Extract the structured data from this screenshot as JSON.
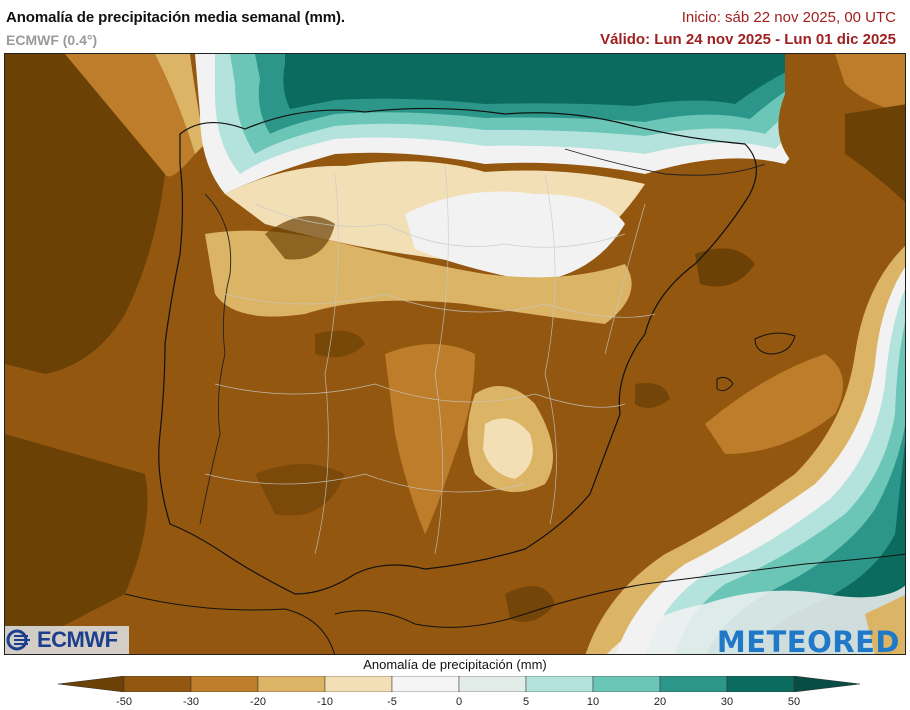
{
  "header": {
    "title": "Anomalía de precipitación media semanal (mm).",
    "model": "ECMWF (0.4°)",
    "init": "Inicio:  sáb 22 nov 2025, 00 UTC",
    "valid": "Válido: Lun 24 nov 2025 - Lun 01 dic 2025"
  },
  "logos": {
    "ecmwf": "ECMWF",
    "meteored": "METEORED"
  },
  "colorbar": {
    "title": "Anomalía de precipitación (mm)",
    "ticks": [
      "-50",
      "-30",
      "-20",
      "-10",
      "-5",
      "0",
      "5",
      "10",
      "20",
      "30",
      "50"
    ],
    "colors": [
      "#6b4106",
      "#94570f",
      "#bd7d2a",
      "#dcb466",
      "#f3dfb5",
      "#f5f5f5",
      "#e2ece9",
      "#b3e3dc",
      "#6cc6b7",
      "#2c968a",
      "#0b6b5e",
      "#074d45"
    ]
  },
  "palette": {
    "deep_brown": "#6b4106",
    "brown": "#94570f",
    "mid_brown": "#bd7d2a",
    "tan": "#dcb466",
    "light_tan": "#f3dfb5",
    "white": "#f2f2f2",
    "light_teal": "#b3e3dc",
    "teal": "#6cc6b7",
    "dark_teal": "#2c968a",
    "deep_teal": "#0b6b5e"
  }
}
